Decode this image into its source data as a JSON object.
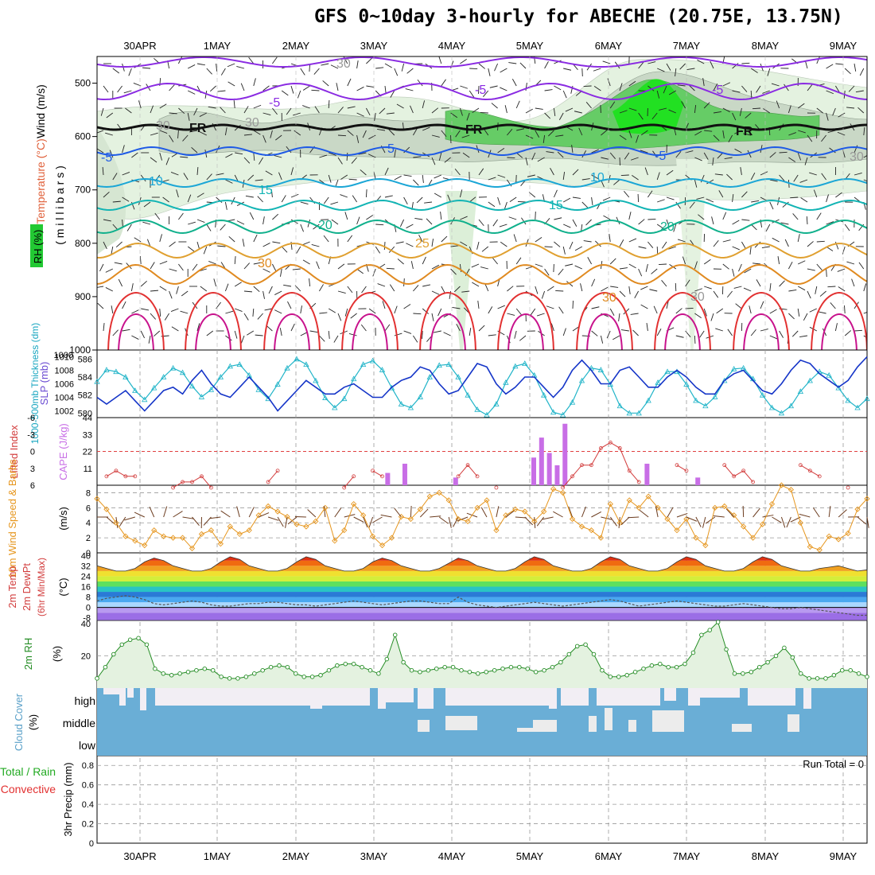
{
  "title": "GFS 0~10day 3-hourly for ABECHE (20.75E, 13.75N)",
  "dates": [
    "30APR",
    "1MAY",
    "2MAY",
    "3MAY",
    "4MAY",
    "5MAY",
    "6MAY",
    "7MAY",
    "8MAY",
    "9MAY"
  ],
  "colors": {
    "rh_green": "#22c933",
    "temp_purple": "#8a2be2",
    "temp_blue": "#1e5ae6",
    "temp_teal": "#12b4b4",
    "temp_orange": "#e08a20",
    "temp_red": "#e23030",
    "thickness": "#20b4c8",
    "slp": "#1535c8",
    "lifted": "#d23c3c",
    "cape": "#c86ee6",
    "wind10": "#e6961e",
    "rh2m": "#238c23",
    "cloud_blue": "#6aaed6",
    "cloud_white": "#f2eef4"
  },
  "panels": {
    "upper": {
      "ylabels": [
        "Wind (m/s)",
        "Temperature (°C)",
        "RH (%)"
      ],
      "ylabel_units": "( m i l l i b a r s )",
      "yticks": [
        "500",
        "600",
        "700",
        "800",
        "900",
        "1000"
      ],
      "contour_labels": [
        "-5",
        "-5",
        "-5",
        "FR",
        "FR",
        "FR",
        "5",
        "-5",
        "-5",
        "10",
        "10",
        "15",
        "15",
        "20",
        "20",
        "25",
        "30",
        "30",
        "30",
        "30",
        "30",
        "30",
        "30"
      ]
    },
    "thickness": {
      "ylabel_left": "1000-500mb Thickness (dm)",
      "ylabel_right": "SLP (mb)",
      "yticks_left": [
        "580",
        "582",
        "584",
        "586"
      ],
      "yticks_right": [
        "1002",
        "1004",
        "1006",
        "1008",
        "1010"
      ]
    },
    "cape": {
      "ylabel_left": "Lifted Index",
      "ylabel_right": "CAPE (J/kg)",
      "yticks_left": [
        "-6",
        "-3",
        "0",
        "3",
        "6"
      ],
      "yticks_right": [
        "44",
        "33",
        "22",
        "11"
      ]
    },
    "wind10": {
      "ylabel": "10m Wind Speed & Barbs",
      "units": "(m/s)",
      "yticks": [
        "0",
        "2",
        "4",
        "6",
        "8"
      ]
    },
    "temp2m": {
      "ylabel": "2m Temp 2m DewPt (6hr Min/Max)",
      "units": "(°C)",
      "yticks": [
        "-8",
        "0",
        "8",
        "16",
        "24",
        "32",
        "40"
      ]
    },
    "rh2m": {
      "ylabel": "2m RH",
      "units": "(%)",
      "yticks": [
        "20",
        "40"
      ]
    },
    "cloud": {
      "ylabel": "Cloud Cover",
      "units": "(%)",
      "levels": [
        "high",
        "middle",
        "low"
      ]
    },
    "precip": {
      "ylabel_total": "Total / Rain",
      "ylabel_conv": "Convective",
      "ylabel": "3hr Precip (mm)",
      "yticks": [
        "0",
        "0.2",
        "0.4",
        "0.6",
        "0.8"
      ],
      "run_total": "Run Total = 0"
    }
  },
  "chart_data": [
    {
      "type": "line",
      "title": "1000-500mb Thickness",
      "ylim": [
        580,
        587
      ],
      "series": [
        {
          "name": "1000-500mb Thickness (dm)",
          "values": [
            583.5,
            584.8,
            584.6,
            584.0,
            582.5,
            581.5,
            582.8,
            584.0,
            585.0,
            584.5,
            583.0,
            581.8,
            582.6,
            584.0,
            585.2,
            585.4,
            584.2,
            582.6,
            581.6,
            583.2,
            585.0,
            586.0,
            585.4,
            583.6,
            581.7,
            580.6,
            581.6,
            583.8,
            585.4,
            585.8,
            584.8,
            582.8,
            581.0,
            580.6,
            581.8,
            584.0,
            585.3,
            585.4,
            584.0,
            582.0,
            580.4,
            579.8,
            581.0,
            583.4,
            585.2,
            585.5,
            584.2,
            582.0,
            580.1,
            579.8,
            581.2,
            583.6,
            585.0,
            584.8,
            583.2,
            580.8,
            580.0,
            580.0,
            581.4,
            583.4,
            584.6,
            584.6,
            583.2,
            581.4,
            580.8,
            581.8,
            583.6,
            584.9,
            585.0,
            583.8,
            582.0,
            580.6,
            580.0,
            580.8,
            582.4,
            583.6,
            584.6,
            584.2,
            582.8,
            581.4,
            580.6,
            581.6
          ]
        }
      ]
    },
    {
      "type": "line",
      "title": "SLP",
      "ylim": [
        1001,
        1011
      ],
      "series": [
        {
          "name": "SLP (mb)",
          "values": [
            1004.0,
            1003.0,
            1004.0,
            1005.0,
            1003.5,
            1002.0,
            1003.5,
            1005.0,
            1005.5,
            1004.5,
            1006.5,
            1008.0,
            1006.0,
            1004.5,
            1004.0,
            1005.5,
            1007.0,
            1005.5,
            1004.0,
            1002.0,
            1003.5,
            1005.0,
            1006.5,
            1005.5,
            1004.5,
            1004.5,
            1005.5,
            1006.0,
            1005.0,
            1004.0,
            1004.0,
            1005.5,
            1006.5,
            1007.0,
            1008.5,
            1008.0,
            1006.0,
            1004.5,
            1005.0,
            1007.0,
            1009.0,
            1008.5,
            1006.0,
            1004.5,
            1005.5,
            1007.0,
            1007.0,
            1005.5,
            1004.0,
            1005.5,
            1008.0,
            1009.5,
            1008.0,
            1006.0,
            1006.0,
            1008.0,
            1008.5,
            1007.0,
            1005.5,
            1005.5,
            1007.0,
            1008.0,
            1007.0,
            1005.5,
            1004.5,
            1004.5,
            1006.5,
            1007.5,
            1008.0,
            1006.5,
            1005.0,
            1004.5,
            1006.0,
            1008.0,
            1009.5,
            1009.0,
            1007.5,
            1006.5,
            1005.5,
            1006.5,
            1008.5,
            1010.0
          ]
        }
      ]
    },
    {
      "type": "bar",
      "title": "CAPE",
      "ylim": [
        0,
        44
      ],
      "series": [
        {
          "name": "CAPE (J/kg)",
          "points": [
            [
              3.63,
              8
            ],
            [
              3.85,
              14
            ],
            [
              4.5,
              5
            ],
            [
              5.5,
              18
            ],
            [
              5.6,
              31
            ],
            [
              5.7,
              21
            ],
            [
              5.8,
              13
            ],
            [
              5.9,
              40
            ],
            [
              6.95,
              14
            ],
            [
              7.6,
              5
            ]
          ]
        }
      ]
    },
    {
      "type": "line",
      "title": "Lifted Index",
      "ylim": [
        6,
        -6
      ],
      "series": [
        {
          "name": "Lifted Index",
          "values": [
            null,
            4,
            3,
            4,
            4,
            null,
            null,
            null,
            6,
            5,
            5,
            4,
            6,
            null,
            null,
            null,
            null,
            null,
            5,
            3,
            null,
            null,
            null,
            null,
            null,
            null,
            6,
            4,
            null,
            3,
            4,
            null,
            null,
            null,
            null,
            null,
            null,
            null,
            4,
            2,
            4,
            null,
            6,
            null,
            null,
            null,
            null,
            null,
            null,
            6,
            4,
            2,
            2,
            -1,
            -2,
            -1,
            3,
            5,
            null,
            null,
            null,
            2,
            3,
            null,
            null,
            null,
            2,
            4,
            3,
            5,
            null,
            null,
            null,
            null,
            2,
            3,
            4,
            null,
            null,
            6,
            null,
            null
          ]
        }
      ]
    },
    {
      "type": "line",
      "title": "10m Wind Speed",
      "ylim": [
        0,
        9
      ],
      "series": [
        {
          "name": "10m Wind Speed (m/s)",
          "values": [
            7.2,
            5.8,
            4.0,
            2.2,
            1.6,
            1.0,
            3.0,
            2.2,
            2.0,
            2.0,
            0.6,
            2.5,
            3.0,
            1.2,
            3.5,
            2.5,
            3.0,
            5.0,
            6.2,
            5.5,
            4.8,
            3.8,
            3.5,
            4.2,
            6.0,
            1.6,
            3.0,
            6.5,
            5.0,
            2.2,
            1.0,
            2.0,
            4.8,
            4.5,
            5.8,
            7.5,
            8.0,
            7.0,
            4.5,
            4.2,
            6.0,
            7.0,
            3.0,
            5.0,
            5.8,
            5.5,
            4.2,
            5.5,
            8.5,
            8.0,
            4.5,
            3.5,
            3.0,
            2.0,
            6.5,
            4.0,
            7.0,
            6.0,
            7.5,
            6.0,
            4.5,
            3.0,
            4.5,
            2.0,
            1.0,
            6.0,
            6.2,
            5.0,
            3.5,
            2.0,
            3.8,
            6.5,
            9.0,
            8.4,
            4.0,
            0.8,
            0.4,
            2.2,
            1.8,
            2.6,
            5.8,
            7.2
          ]
        }
      ]
    },
    {
      "type": "area",
      "title": "2m Temp",
      "ylim": [
        -10,
        42
      ],
      "series": [
        {
          "name": "2m Temp (°C)",
          "values": [
            32,
            30,
            28,
            28,
            30,
            35,
            38,
            36,
            32,
            30,
            28,
            28,
            30,
            35,
            39,
            37,
            32,
            30,
            28,
            28,
            30,
            35,
            39,
            37,
            32,
            30,
            28,
            28,
            30,
            35,
            38,
            36,
            32,
            30,
            28,
            28,
            30,
            34,
            38,
            36,
            32,
            30,
            28,
            28,
            30,
            35,
            39,
            37,
            32,
            30,
            28,
            28,
            30,
            35,
            39,
            37,
            32,
            30,
            28,
            28,
            30,
            35,
            39,
            37,
            32,
            30,
            28,
            28,
            30,
            35,
            39,
            37,
            32,
            30,
            28,
            28,
            30,
            31,
            32,
            30,
            28,
            29
          ]
        },
        {
          "name": "2m DewPt (°C)",
          "values": [
            5,
            7,
            8,
            9,
            8,
            6,
            3,
            2,
            3,
            4,
            5,
            4,
            2,
            1,
            1,
            2,
            3,
            3,
            4,
            4,
            3,
            2,
            2,
            1,
            2,
            3,
            4,
            5,
            4,
            3,
            2,
            3,
            4,
            5,
            5,
            4,
            3,
            3,
            8,
            4,
            2,
            1,
            0,
            1,
            2,
            3,
            4,
            3,
            2,
            1,
            2,
            3,
            4,
            5,
            6,
            5,
            3,
            1,
            2,
            3,
            4,
            5,
            4,
            3,
            2,
            1,
            1,
            2,
            3,
            2,
            1,
            0,
            -1,
            -1,
            0,
            -1,
            -2,
            -3,
            -4,
            -5,
            -6,
            -6
          ]
        }
      ]
    },
    {
      "type": "area",
      "title": "2m RH",
      "ylim": [
        0,
        42
      ],
      "series": [
        {
          "name": "2m RH (%)",
          "values": [
            6,
            13,
            21,
            27,
            30,
            31,
            27,
            12,
            9,
            8,
            9,
            10,
            11,
            12,
            11,
            7,
            6,
            6,
            7,
            9,
            11,
            13,
            14,
            13,
            9,
            7,
            7,
            8,
            11,
            14,
            15,
            15,
            13,
            11,
            9,
            18,
            33,
            16,
            11,
            10,
            11,
            12,
            13,
            13,
            11,
            10,
            9,
            10,
            11,
            12,
            13,
            13,
            12,
            10,
            11,
            13,
            16,
            21,
            26,
            27,
            21,
            11,
            7,
            7,
            8,
            10,
            12,
            14,
            15,
            13,
            13,
            15,
            22,
            33,
            36,
            41,
            24,
            9,
            9,
            10,
            13,
            16,
            20,
            25,
            19,
            9,
            6,
            6,
            6,
            8,
            11,
            11,
            9,
            7
          ]
        }
      ]
    },
    {
      "type": "bar",
      "title": "Cloud Cover",
      "ylim": [
        0,
        100
      ],
      "series": [
        {
          "name": "high",
          "note": "mostly full"
        },
        {
          "name": "middle",
          "note": "intermittent"
        },
        {
          "name": "low",
          "note": "full"
        }
      ]
    },
    {
      "type": "bar",
      "title": "3hr Precip",
      "ylim": [
        0,
        0.9
      ],
      "series": [
        {
          "name": "3hr Precip (mm)",
          "values": []
        }
      ]
    }
  ]
}
